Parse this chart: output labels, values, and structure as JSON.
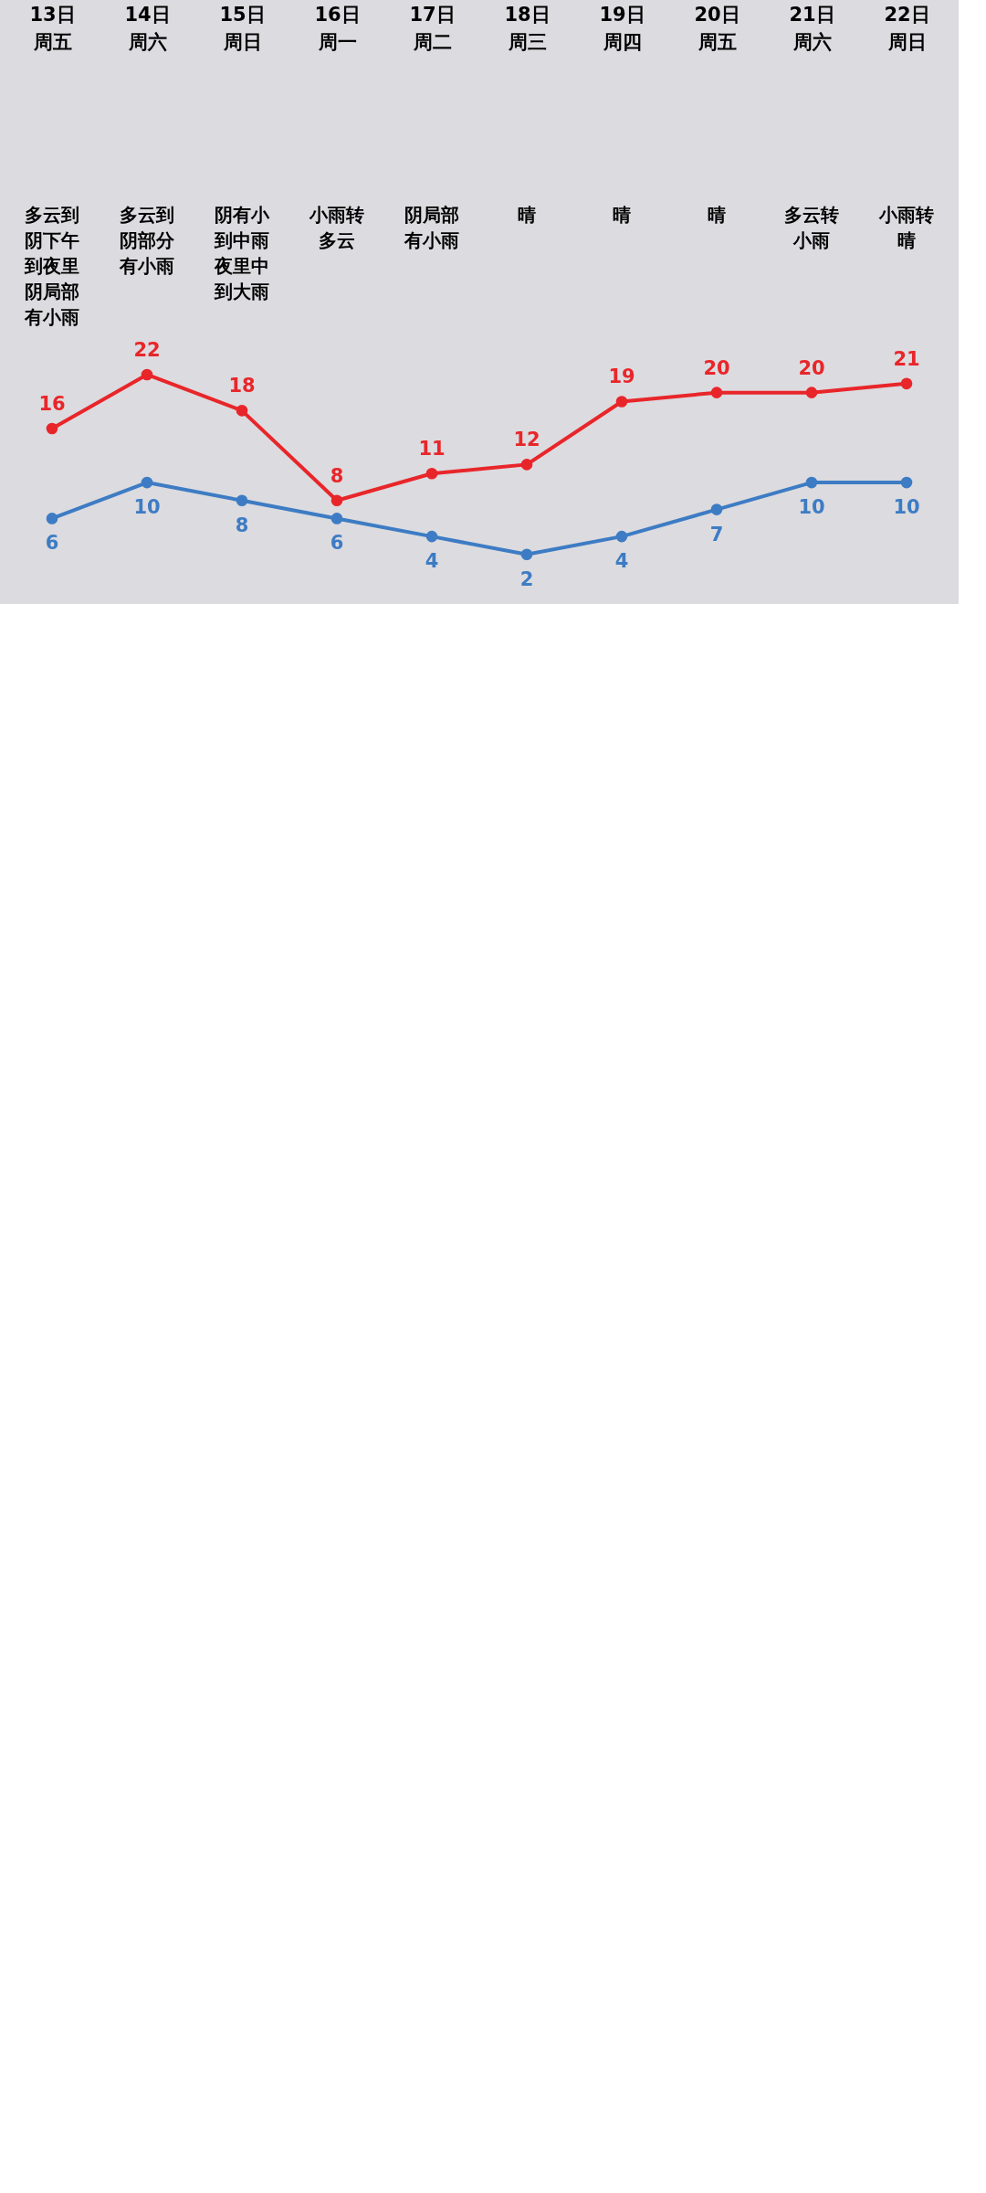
{
  "chart_data": {
    "type": "line",
    "categories": [
      "13日周五",
      "14日周六",
      "15日周日",
      "16日周一",
      "17日周二",
      "18日周三",
      "19日周四",
      "20日周五",
      "21日周六",
      "22日周日"
    ],
    "series": [
      {
        "color": "#e8262a",
        "values": [
          16,
          22,
          18,
          8,
          11,
          12,
          19,
          20,
          20,
          21
        ]
      },
      {
        "color": "#3d7cc4",
        "values": [
          6,
          10,
          8,
          6,
          4,
          2,
          4,
          7,
          10,
          10
        ]
      }
    ],
    "annotations": [
      "多云到阴下午到夜里阴局部有小雨",
      "多云到阴部分有小雨",
      "阴有小到中雨夜里中到大雨",
      "小雨转多云",
      "阴局部有小雨",
      "晴",
      "晴",
      "晴",
      "多云转小雨",
      "小雨转晴"
    ],
    "data_labels": true,
    "marker": "circle",
    "tick_labels": "x",
    "line_style": "solid"
  }
}
